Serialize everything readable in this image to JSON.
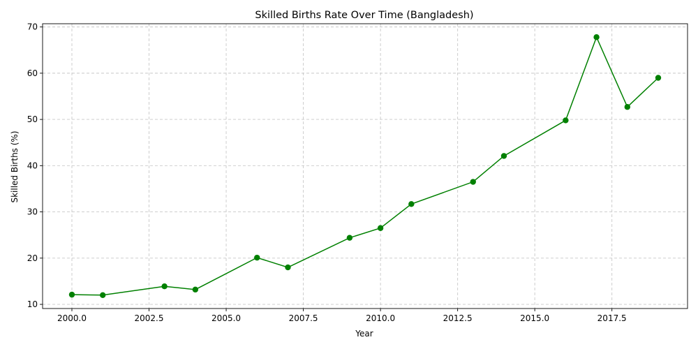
{
  "chart_data": {
    "type": "line",
    "title": "Skilled Births Rate Over Time (Bangladesh)",
    "xlabel": "Year",
    "ylabel": "Skilled Births (%)",
    "xlim": [
      1999.05,
      2019.95
    ],
    "ylim": [
      9.1,
      70.7
    ],
    "xticks": [
      2000.0,
      2002.5,
      2005.0,
      2007.5,
      2010.0,
      2012.5,
      2015.0,
      2017.5
    ],
    "xtick_labels": [
      "2000.0",
      "2002.5",
      "2005.0",
      "2007.5",
      "2010.0",
      "2012.5",
      "2015.0",
      "2017.5"
    ],
    "yticks": [
      10,
      20,
      30,
      40,
      50,
      60,
      70
    ],
    "ytick_labels": [
      "10",
      "20",
      "30",
      "40",
      "50",
      "60",
      "70"
    ],
    "grid": true,
    "series": [
      {
        "color": "#008000",
        "marker": "circle",
        "x": [
          2000,
          2001,
          2003,
          2004,
          2006,
          2007,
          2009,
          2010,
          2011,
          2013,
          2014,
          2016,
          2017,
          2018,
          2019
        ],
        "y": [
          12.1,
          12.0,
          13.9,
          13.2,
          20.1,
          18.0,
          24.4,
          26.5,
          31.7,
          36.5,
          42.1,
          49.8,
          67.8,
          52.7,
          59.0
        ]
      }
    ]
  }
}
